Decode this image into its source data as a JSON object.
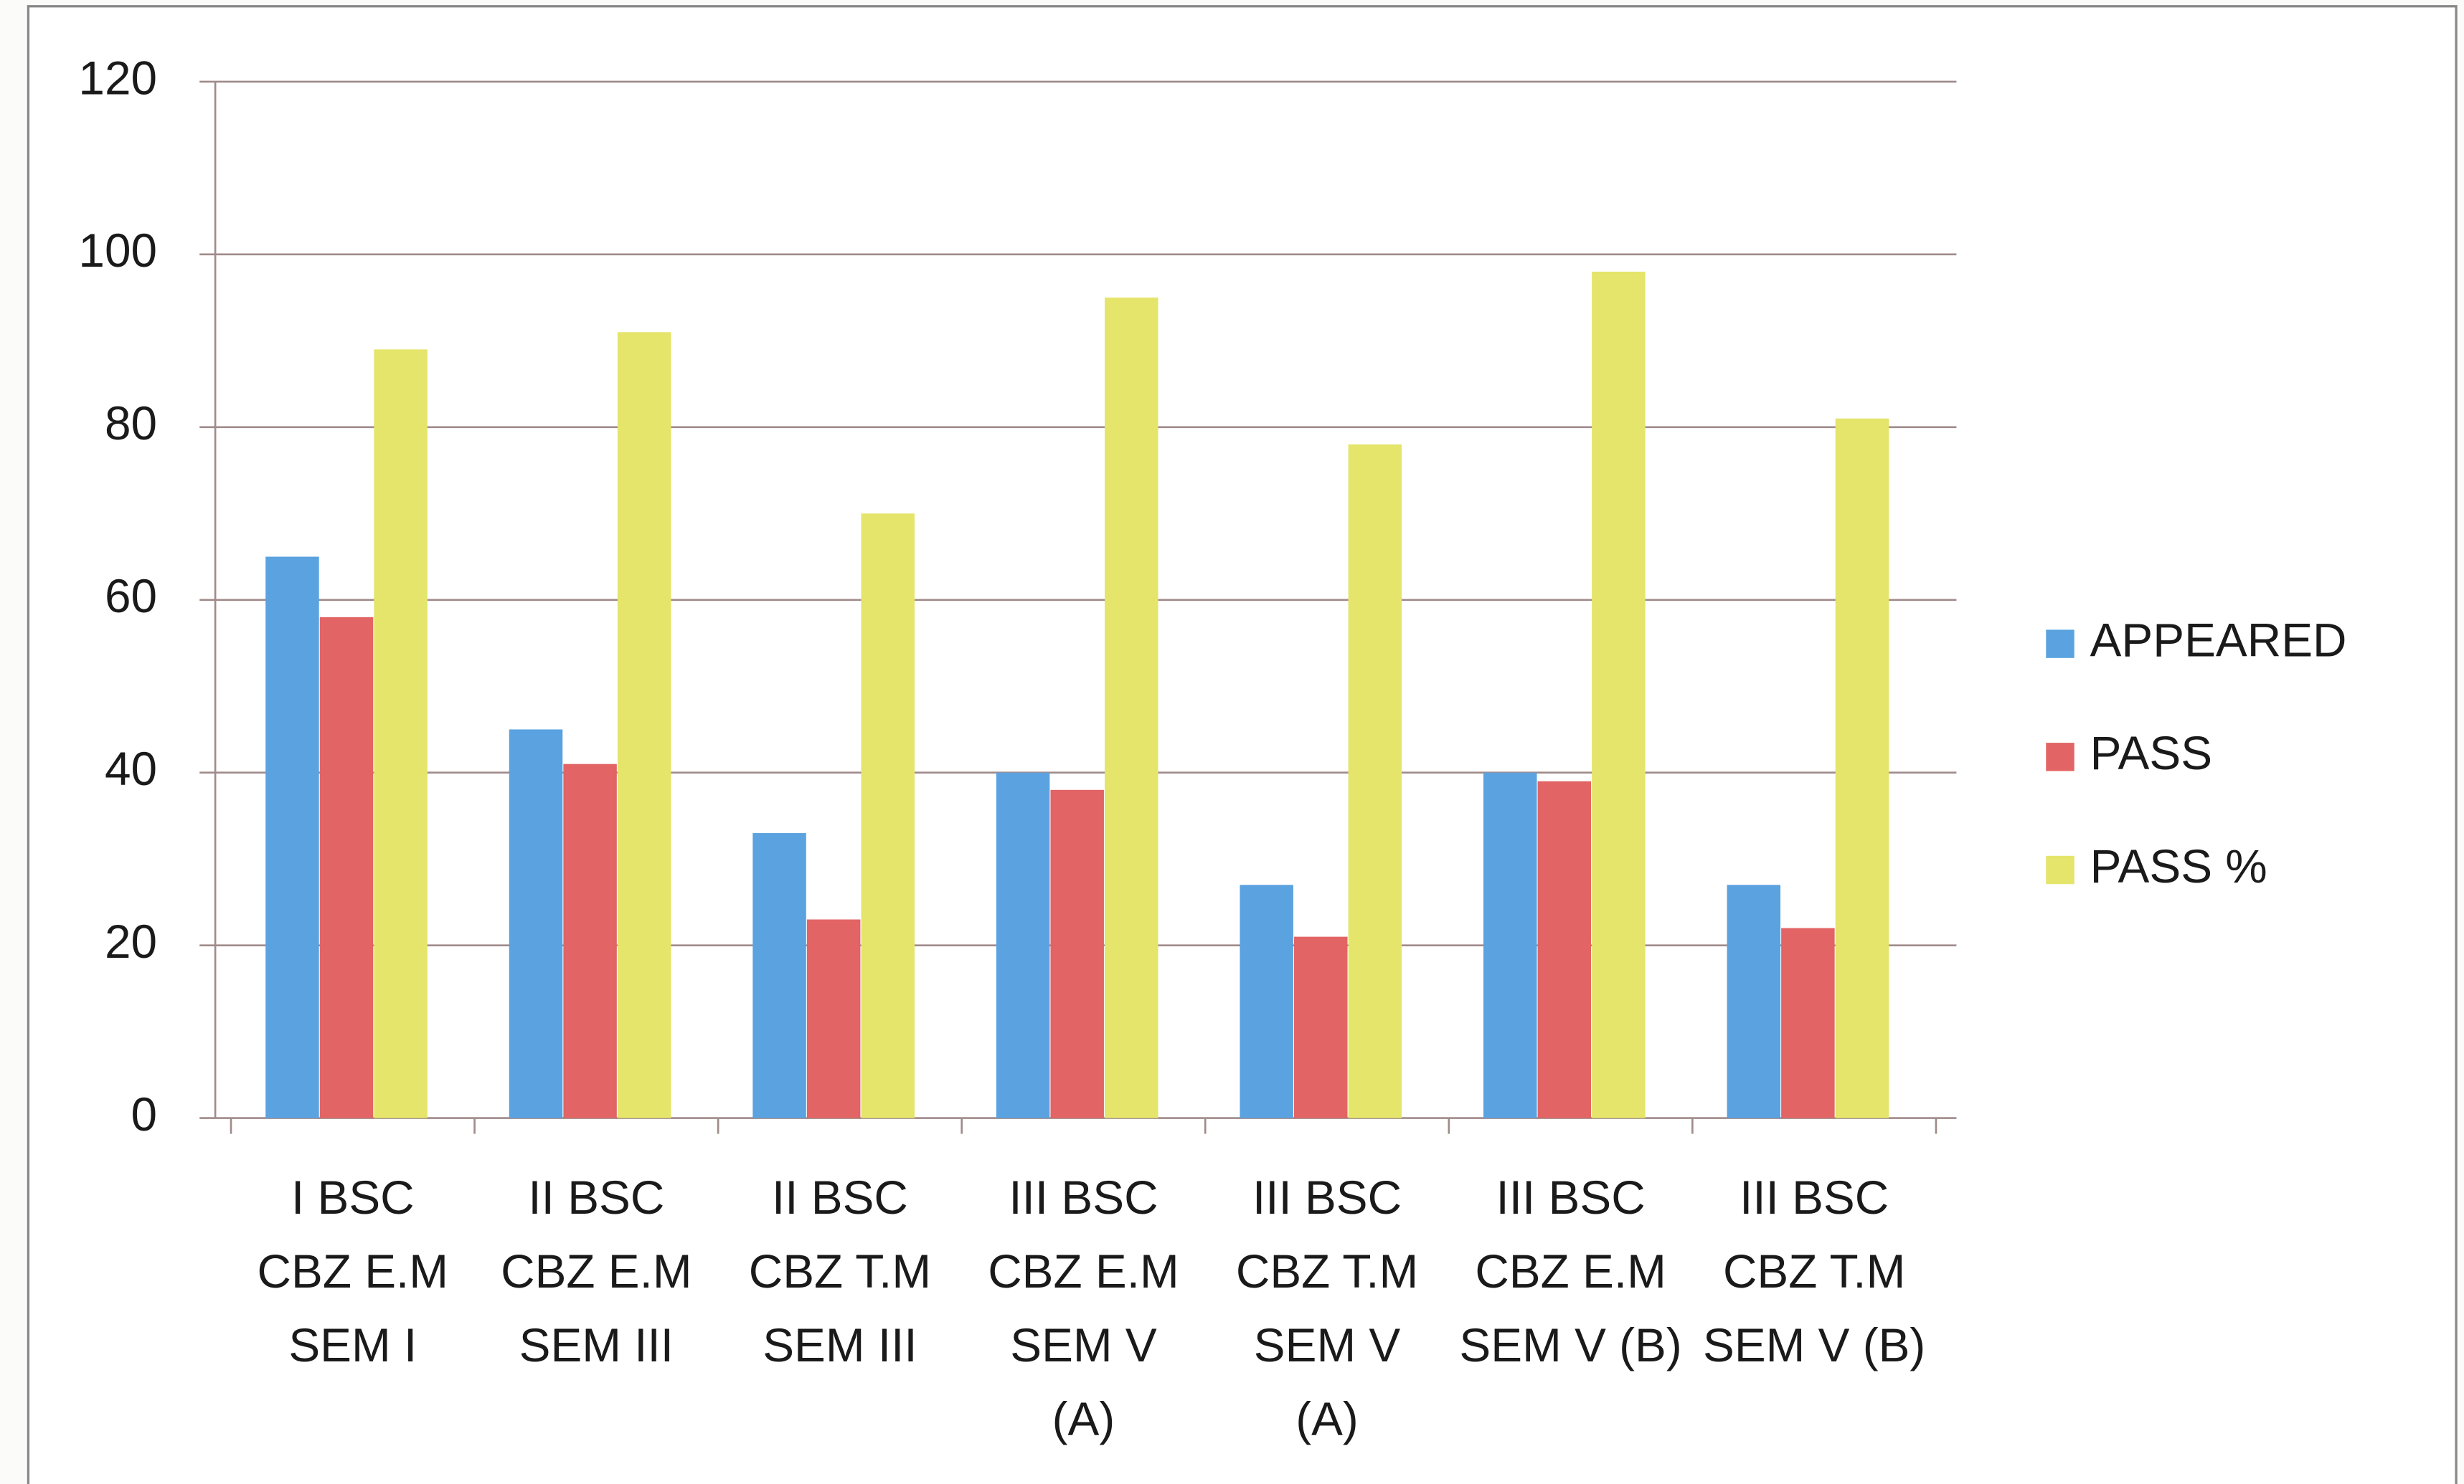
{
  "chart_data": {
    "type": "bar",
    "categories": [
      [
        "I BSC",
        "CBZ E.M",
        "SEM I"
      ],
      [
        "II BSC",
        "CBZ E.M",
        "SEM III"
      ],
      [
        "II BSC",
        "CBZ T.M",
        "SEM III"
      ],
      [
        "III BSC",
        "CBZ E.M",
        "SEM V",
        "(A)"
      ],
      [
        "III BSC",
        "CBZ T.M",
        "SEM V",
        "(A)"
      ],
      [
        "III BSC",
        "CBZ E.M",
        "SEM V (B)"
      ],
      [
        "III BSC",
        "CBZ T.M",
        "SEM V (B)"
      ]
    ],
    "series": [
      {
        "name": "APPEARED",
        "color": "#5aa2e0",
        "values": [
          65,
          45,
          33,
          40,
          27,
          40,
          27
        ]
      },
      {
        "name": "PASS",
        "color": "#e26464",
        "values": [
          58,
          41,
          23,
          38,
          21,
          39,
          22
        ]
      },
      {
        "name": "PASS %",
        "color": "#e4e56a",
        "values": [
          89,
          91,
          70,
          95,
          78,
          98,
          81
        ]
      }
    ],
    "ylim": [
      0,
      120
    ],
    "yticks": [
      0,
      20,
      40,
      60,
      80,
      100,
      120
    ],
    "grid": true,
    "legend": "right"
  }
}
